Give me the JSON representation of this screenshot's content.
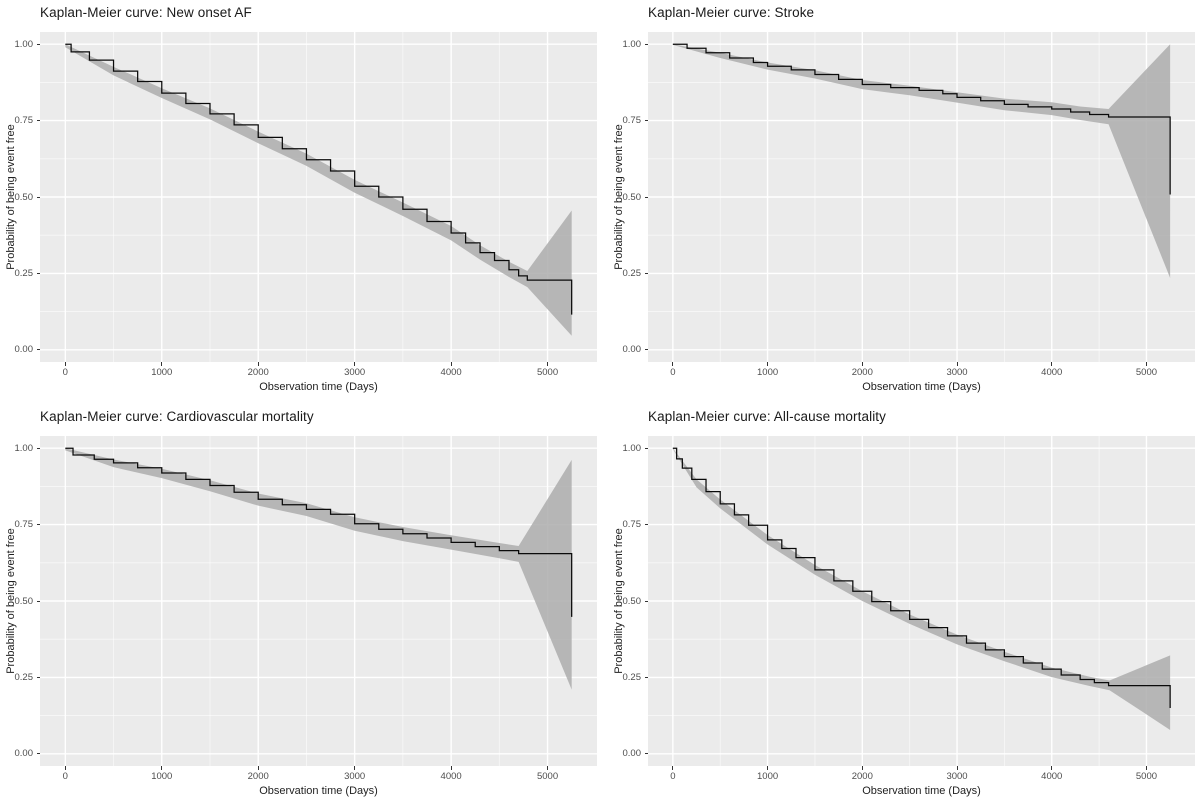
{
  "figure": {
    "background": "#ffffff",
    "layout": "2x2 grid of Kaplan-Meier survival plots"
  },
  "chart_data": [
    {
      "type": "line",
      "title": "Kaplan-Meier curve: New onset AF",
      "xlabel": "Observation time (Days)",
      "ylabel": "Probability of being event free",
      "xlim": [
        0,
        5250
      ],
      "ylim": [
        0,
        1
      ],
      "xticks": {
        "values": [
          0,
          1000,
          2000,
          3000,
          4000,
          5000
        ],
        "labels": [
          "0",
          "1000",
          "2000",
          "3000",
          "4000",
          "5000"
        ]
      },
      "yticks": {
        "values": [
          0,
          0.25,
          0.5,
          0.75,
          1.0
        ],
        "labels": [
          "0.00",
          "0.25",
          "0.50",
          "0.75",
          "1.00"
        ]
      },
      "grid": "white major and minor gridlines on grey panel",
      "legend": "none",
      "colors": {
        "panel_bg": "#EBEBEB",
        "ci_band": "#ADADAD",
        "line": "#0a0a0a",
        "tick_text": "#4d4d4d"
      },
      "series": [
        {
          "name": "KM estimate",
          "step": true,
          "points": [
            [
              0,
              1.0
            ],
            [
              60,
              0.975
            ],
            [
              250,
              0.948
            ],
            [
              500,
              0.912
            ],
            [
              750,
              0.878
            ],
            [
              1000,
              0.84
            ],
            [
              1250,
              0.806
            ],
            [
              1500,
              0.772
            ],
            [
              1750,
              0.736
            ],
            [
              2000,
              0.695
            ],
            [
              2250,
              0.658
            ],
            [
              2500,
              0.622
            ],
            [
              2750,
              0.585
            ],
            [
              3000,
              0.535
            ],
            [
              3250,
              0.5
            ],
            [
              3500,
              0.46
            ],
            [
              3750,
              0.42
            ],
            [
              4000,
              0.382
            ],
            [
              4150,
              0.35
            ],
            [
              4300,
              0.318
            ],
            [
              4450,
              0.292
            ],
            [
              4600,
              0.262
            ],
            [
              4700,
              0.242
            ],
            [
              4790,
              0.228
            ],
            [
              5250,
              0.228
            ],
            [
              5250,
              0.115
            ]
          ]
        }
      ],
      "ci_band": [
        [
          0,
          0.99,
          1.0
        ],
        [
          500,
          0.898,
          0.926
        ],
        [
          1000,
          0.824,
          0.856
        ],
        [
          1500,
          0.754,
          0.79
        ],
        [
          2000,
          0.676,
          0.714
        ],
        [
          2500,
          0.602,
          0.642
        ],
        [
          3000,
          0.514,
          0.556
        ],
        [
          3500,
          0.438,
          0.482
        ],
        [
          4000,
          0.358,
          0.405
        ],
        [
          4300,
          0.295,
          0.342
        ],
        [
          4600,
          0.238,
          0.288
        ],
        [
          4790,
          0.205,
          0.258
        ],
        [
          5250,
          0.046,
          0.456
        ]
      ]
    },
    {
      "type": "line",
      "title": "Kaplan-Meier curve: Stroke",
      "xlabel": "Observation time (Days)",
      "ylabel": "Probability of being event free",
      "xlim": [
        0,
        5250
      ],
      "ylim": [
        0,
        1
      ],
      "xticks": {
        "values": [
          0,
          1000,
          2000,
          3000,
          4000,
          5000
        ],
        "labels": [
          "0",
          "1000",
          "2000",
          "3000",
          "4000",
          "5000"
        ]
      },
      "yticks": {
        "values": [
          0,
          0.25,
          0.5,
          0.75,
          1.0
        ],
        "labels": [
          "0.00",
          "0.25",
          "0.50",
          "0.75",
          "1.00"
        ]
      },
      "grid": "white major and minor gridlines on grey panel",
      "legend": "none",
      "colors": {
        "panel_bg": "#EBEBEB",
        "ci_band": "#ADADAD",
        "line": "#0a0a0a",
        "tick_text": "#4d4d4d"
      },
      "series": [
        {
          "name": "KM estimate",
          "step": true,
          "points": [
            [
              0,
              1.0
            ],
            [
              150,
              0.987
            ],
            [
              350,
              0.972
            ],
            [
              600,
              0.955
            ],
            [
              850,
              0.94
            ],
            [
              1000,
              0.928
            ],
            [
              1250,
              0.916
            ],
            [
              1500,
              0.901
            ],
            [
              1750,
              0.885
            ],
            [
              2000,
              0.868
            ],
            [
              2300,
              0.858
            ],
            [
              2600,
              0.849
            ],
            [
              2850,
              0.838
            ],
            [
              3000,
              0.826
            ],
            [
              3250,
              0.815
            ],
            [
              3500,
              0.803
            ],
            [
              3750,
              0.795
            ],
            [
              4000,
              0.788
            ],
            [
              4200,
              0.778
            ],
            [
              4400,
              0.77
            ],
            [
              4600,
              0.762
            ],
            [
              5250,
              0.762
            ],
            [
              5250,
              0.508
            ]
          ]
        }
      ],
      "ci_band": [
        [
          0,
          0.998,
          1.0
        ],
        [
          500,
          0.955,
          0.972
        ],
        [
          1000,
          0.917,
          0.94
        ],
        [
          1500,
          0.888,
          0.915
        ],
        [
          2000,
          0.853,
          0.883
        ],
        [
          2500,
          0.833,
          0.864
        ],
        [
          3000,
          0.809,
          0.843
        ],
        [
          3500,
          0.784,
          0.822
        ],
        [
          4000,
          0.768,
          0.81
        ],
        [
          4300,
          0.752,
          0.796
        ],
        [
          4600,
          0.738,
          0.788
        ],
        [
          5250,
          0.235,
          1.0
        ]
      ]
    },
    {
      "type": "line",
      "title": "Kaplan-Meier curve: Cardiovascular mortality",
      "xlabel": "Observation time (Days)",
      "ylabel": "Probability of being event free",
      "xlim": [
        0,
        5250
      ],
      "ylim": [
        0,
        1
      ],
      "xticks": {
        "values": [
          0,
          1000,
          2000,
          3000,
          4000,
          5000
        ],
        "labels": [
          "0",
          "1000",
          "2000",
          "3000",
          "4000",
          "5000"
        ]
      },
      "yticks": {
        "values": [
          0,
          0.25,
          0.5,
          0.75,
          1.0
        ],
        "labels": [
          "0.00",
          "0.25",
          "0.50",
          "0.75",
          "1.00"
        ]
      },
      "grid": "white major and minor gridlines on grey panel",
      "legend": "none",
      "colors": {
        "panel_bg": "#EBEBEB",
        "ci_band": "#ADADAD",
        "line": "#0a0a0a",
        "tick_text": "#4d4d4d"
      },
      "series": [
        {
          "name": "KM estimate",
          "step": true,
          "points": [
            [
              0,
              1.0
            ],
            [
              80,
              0.978
            ],
            [
              300,
              0.964
            ],
            [
              500,
              0.952
            ],
            [
              750,
              0.936
            ],
            [
              1000,
              0.919
            ],
            [
              1250,
              0.898
            ],
            [
              1500,
              0.878
            ],
            [
              1750,
              0.856
            ],
            [
              2000,
              0.833
            ],
            [
              2250,
              0.815
            ],
            [
              2500,
              0.8
            ],
            [
              2750,
              0.784
            ],
            [
              3000,
              0.753
            ],
            [
              3250,
              0.735
            ],
            [
              3500,
              0.72
            ],
            [
              3750,
              0.706
            ],
            [
              4000,
              0.692
            ],
            [
              4250,
              0.678
            ],
            [
              4500,
              0.665
            ],
            [
              4700,
              0.655
            ],
            [
              5250,
              0.655
            ],
            [
              5250,
              0.448
            ]
          ]
        }
      ],
      "ci_band": [
        [
          0,
          0.993,
          1.0
        ],
        [
          500,
          0.938,
          0.963
        ],
        [
          1000,
          0.902,
          0.933
        ],
        [
          1500,
          0.859,
          0.895
        ],
        [
          2000,
          0.812,
          0.852
        ],
        [
          2500,
          0.778,
          0.82
        ],
        [
          3000,
          0.73,
          0.774
        ],
        [
          3500,
          0.696,
          0.742
        ],
        [
          4000,
          0.668,
          0.715
        ],
        [
          4500,
          0.64,
          0.69
        ],
        [
          4700,
          0.628,
          0.68
        ],
        [
          5250,
          0.21,
          0.962
        ]
      ]
    },
    {
      "type": "line",
      "title": "Kaplan-Meier curve: All-cause mortality",
      "xlabel": "Observation time (Days)",
      "ylabel": "Probability of being event free",
      "xlim": [
        0,
        5250
      ],
      "ylim": [
        0,
        1
      ],
      "xticks": {
        "values": [
          0,
          1000,
          2000,
          3000,
          4000,
          5000
        ],
        "labels": [
          "0",
          "1000",
          "2000",
          "3000",
          "4000",
          "5000"
        ]
      },
      "yticks": {
        "values": [
          0,
          0.25,
          0.5,
          0.75,
          1.0
        ],
        "labels": [
          "0.00",
          "0.25",
          "0.50",
          "0.75",
          "1.00"
        ]
      },
      "grid": "white major and minor gridlines on grey panel",
      "legend": "none",
      "colors": {
        "panel_bg": "#EBEBEB",
        "ci_band": "#ADADAD",
        "line": "#0a0a0a",
        "tick_text": "#4d4d4d"
      },
      "series": [
        {
          "name": "KM estimate",
          "step": true,
          "points": [
            [
              0,
              1.0
            ],
            [
              40,
              0.965
            ],
            [
              100,
              0.935
            ],
            [
              200,
              0.898
            ],
            [
              350,
              0.858
            ],
            [
              500,
              0.818
            ],
            [
              650,
              0.782
            ],
            [
              800,
              0.748
            ],
            [
              1000,
              0.7
            ],
            [
              1150,
              0.672
            ],
            [
              1300,
              0.642
            ],
            [
              1500,
              0.602
            ],
            [
              1700,
              0.566
            ],
            [
              1900,
              0.532
            ],
            [
              2100,
              0.498
            ],
            [
              2300,
              0.468
            ],
            [
              2500,
              0.44
            ],
            [
              2700,
              0.413
            ],
            [
              2900,
              0.386
            ],
            [
              3100,
              0.362
            ],
            [
              3300,
              0.34
            ],
            [
              3500,
              0.318
            ],
            [
              3700,
              0.297
            ],
            [
              3900,
              0.277
            ],
            [
              4100,
              0.258
            ],
            [
              4300,
              0.243
            ],
            [
              4450,
              0.233
            ],
            [
              4600,
              0.223
            ],
            [
              5250,
              0.223
            ],
            [
              5250,
              0.15
            ]
          ]
        }
      ],
      "ci_band": [
        [
          0,
          0.997,
          1.0
        ],
        [
          250,
          0.872,
          0.898
        ],
        [
          500,
          0.803,
          0.832
        ],
        [
          1000,
          0.685,
          0.716
        ],
        [
          1500,
          0.586,
          0.618
        ],
        [
          2000,
          0.5,
          0.532
        ],
        [
          2500,
          0.425,
          0.456
        ],
        [
          3000,
          0.358,
          0.39
        ],
        [
          3500,
          0.303,
          0.334
        ],
        [
          4000,
          0.251,
          0.282
        ],
        [
          4400,
          0.222,
          0.252
        ],
        [
          4610,
          0.208,
          0.24
        ],
        [
          5250,
          0.078,
          0.322
        ]
      ]
    }
  ]
}
